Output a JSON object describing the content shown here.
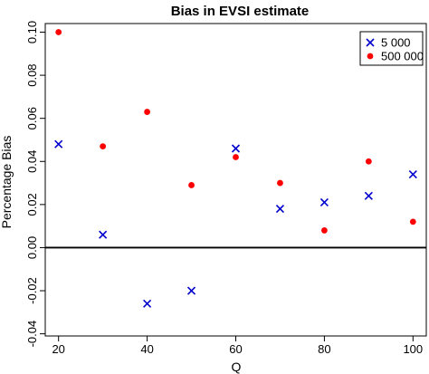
{
  "chart_data": {
    "type": "scatter",
    "title": "Bias in EVSI estimate",
    "xlabel": "Q",
    "ylabel": "Percentage Bias",
    "xlim": [
      17,
      103
    ],
    "ylim": [
      -0.041,
      0.104
    ],
    "xticks": [
      20,
      40,
      60,
      80,
      100
    ],
    "xtick_labels": [
      "20",
      "40",
      "60",
      "80",
      "100"
    ],
    "yticks": [
      -0.04,
      -0.02,
      0.0,
      0.02,
      0.04,
      0.06,
      0.08,
      0.1
    ],
    "ytick_labels": [
      "-0.04",
      "-0.02",
      "0.00",
      "0.02",
      "0.04",
      "0.06",
      "0.08",
      "0.10"
    ],
    "reference_line_y": 0,
    "grid": false,
    "legend_position": "top-right",
    "series": [
      {
        "name": "5 000",
        "marker": "x",
        "color": "#0000cd",
        "x": [
          20,
          30,
          40,
          50,
          60,
          70,
          80,
          90,
          100
        ],
        "y": [
          0.048,
          0.006,
          -0.026,
          -0.02,
          0.046,
          0.018,
          0.021,
          0.024,
          0.034
        ]
      },
      {
        "name": "500 000",
        "marker": "circle",
        "color": "#ff0000",
        "x": [
          20,
          30,
          40,
          50,
          60,
          70,
          80,
          90,
          100
        ],
        "y": [
          0.1,
          0.047,
          0.063,
          0.029,
          0.042,
          0.03,
          0.008,
          0.04,
          0.012
        ]
      }
    ]
  }
}
